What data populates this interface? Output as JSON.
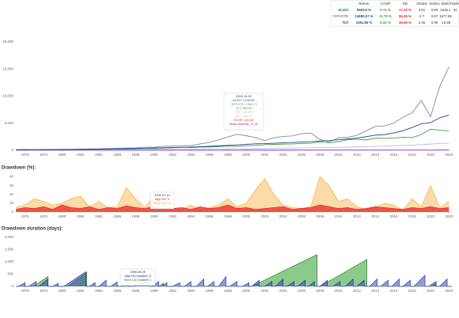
{
  "table": {
    "headers": [
      "Return",
      "CAGR",
      "DD",
      "Sharpe",
      "Sortino",
      "Stdev",
      "Trades"
    ],
    "rows": [
      [
        "ALGO:",
        "8463.8 %",
        "9.74 %",
        "17.33 %",
        "0.51",
        "0.83",
        "3436.1",
        "44"
      ],
      [
        "^SPXSTR:",
        "14880.57 %",
        "11.79 %",
        "55.25 %",
        "0.7",
        "0.87",
        "1677.58"
      ],
      [
        "TLT:",
        "2451.85 %",
        "6.32 %",
        "26.59 %",
        "2.46",
        "0.99",
        "-12.88"
      ]
    ],
    "row_colors": [
      "#1c4f8a",
      "#7d8b99",
      "#333333"
    ],
    "column_colors": [
      "#1c4f8a",
      "#2e9e2e",
      "#e8191b"
    ]
  },
  "chart_data": [
    {
      "type": "line",
      "grid": false,
      "x": [
        1975,
        1976,
        1977,
        1978,
        1979,
        1980,
        1981,
        1982,
        1983,
        1984,
        1985,
        1986,
        1987,
        1988,
        1989,
        1990,
        1991,
        1992,
        1993,
        1994,
        1995,
        1996,
        1997,
        1998,
        1999,
        2000,
        2001,
        2002,
        2003,
        2004,
        2005,
        2006,
        2007,
        2008,
        2009,
        2010,
        2011,
        2012,
        2013,
        2014,
        2015,
        2016,
        2017,
        2018,
        2019,
        2020,
        2021,
        2022
      ],
      "xlim": [
        1975,
        2022.4
      ],
      "xticks": [
        1976,
        1978,
        1980,
        1982,
        1984,
        1986,
        1988,
        1990,
        1992,
        1994,
        1996,
        1998,
        2000,
        2002,
        2004,
        2006,
        2008,
        2010,
        2012,
        2014,
        2016,
        2018,
        2020,
        2022
      ],
      "ylim": [
        0,
        20000
      ],
      "yticks": [
        0,
        {
          "value": 5000,
          "label": "5,000"
        },
        {
          "value": 10000,
          "label": "10,000"
        },
        {
          "value": 15000,
          "label": "15,000"
        },
        {
          "value": 20000,
          "label": "20,000"
        }
      ],
      "series": [
        {
          "color": "#c0b4ee",
          "values": [
            100,
            102,
            104,
            106,
            108,
            112,
            116,
            120,
            125,
            130,
            135,
            140,
            146,
            152,
            158,
            165,
            172,
            180,
            190,
            200,
            210,
            225,
            240,
            255,
            270,
            290,
            310,
            330,
            350,
            370,
            400,
            430,
            460,
            480,
            520,
            560,
            600,
            640,
            680,
            720,
            780,
            840,
            900,
            960,
            1050,
            1150,
            1250,
            1300
          ]
        },
        {
          "color": "#8a2be2",
          "values": [
            20,
            22,
            21,
            23,
            24,
            22,
            25,
            26,
            24,
            27,
            28,
            27,
            29,
            30,
            28,
            31,
            30,
            32,
            31,
            33,
            32,
            34,
            33,
            35,
            34,
            36,
            35,
            37,
            36,
            38,
            37,
            39,
            38,
            40,
            39,
            41,
            40,
            42,
            41,
            43,
            42,
            44,
            43,
            45,
            44,
            46,
            45,
            47
          ]
        },
        {
          "name": "TLT",
          "color": "#3a9a3a",
          "values": [
            100,
            110,
            105,
            110,
            115,
            120,
            125,
            160,
            170,
            190,
            240,
            290,
            280,
            300,
            350,
            370,
            420,
            470,
            550,
            500,
            600,
            610,
            690,
            780,
            720,
            850,
            900,
            1030,
            1080,
            1150,
            1180,
            1250,
            1310,
            1560,
            1400,
            1600,
            1950,
            2050,
            1900,
            2250,
            2200,
            2250,
            2400,
            2350,
            2900,
            3900,
            3700,
            3600
          ]
        },
        {
          "name": "^SPXSTR",
          "color": "#7d8b99",
          "values": [
            100,
            115,
            110,
            120,
            140,
            170,
            160,
            190,
            240,
            250,
            320,
            380,
            400,
            450,
            580,
            560,
            720,
            780,
            860,
            870,
            1180,
            1450,
            1920,
            2450,
            2950,
            2700,
            2350,
            1800,
            2300,
            2550,
            2650,
            3050,
            3200,
            2000,
            1550,
            2300,
            2400,
            2750,
            3600,
            4400,
            4500,
            5000,
            6100,
            6900,
            9200,
            6200,
            11800,
            15400
          ]
        },
        {
          "name": "ALGO",
          "color": "#1c4f8a",
          "values": [
            100,
            110,
            120,
            130,
            140,
            160,
            175,
            195,
            220,
            240,
            270,
            300,
            330,
            350,
            380,
            420,
            470,
            510,
            560,
            600,
            660,
            730,
            820,
            920,
            1000,
            1100,
            1200,
            1230,
            1300,
            1380,
            1450,
            1520,
            1600,
            1720,
            1800,
            1950,
            2100,
            2250,
            2500,
            2800,
            2900,
            3200,
            3600,
            4200,
            4900,
            5100,
            6000,
            6500
          ]
        }
      ],
      "tooltip": {
        "title": "2000-10-30",
        "lines": [
          {
            "text": "ALGO: 1,228.82",
            "color": "#1c4f8a"
          },
          {
            "text": "^SPXSTR: 2,688.73",
            "color": "#7d8b99"
          },
          {
            "text": "TLT: 388.00",
            "color": "#3a9a3a"
          },
          {
            "text": "IEF: 300.85",
            "color": "#c0b4ee"
          },
          {
            "text": "GLD: 164.90",
            "color": "#e6d27a"
          },
          {
            "text": "ECHF: 190.40",
            "color": "#e8191b"
          },
          {
            "text": "Mode (benefit): 37.40",
            "color": "#8a2be2"
          }
        ]
      }
    },
    {
      "type": "area",
      "title": "Drawdown (%):",
      "grid": false,
      "x": [
        1975,
        1976,
        1977,
        1978,
        1979,
        1980,
        1981,
        1982,
        1983,
        1984,
        1985,
        1986,
        1987,
        1988,
        1989,
        1990,
        1991,
        1992,
        1993,
        1994,
        1995,
        1996,
        1997,
        1998,
        1999,
        2000,
        2001,
        2002,
        2003,
        2004,
        2005,
        2006,
        2007,
        2008,
        2009,
        2010,
        2011,
        2012,
        2013,
        2014,
        2015,
        2016,
        2017,
        2018,
        2019,
        2020,
        2021,
        2022
      ],
      "xlim": [
        1975,
        2022.4
      ],
      "xticks": [
        1976,
        1978,
        1980,
        1982,
        1984,
        1986,
        1988,
        1990,
        1992,
        1994,
        1996,
        1998,
        2000,
        2002,
        2004,
        2006,
        2008,
        2010,
        2012,
        2014,
        2016,
        2018,
        2020,
        2022
      ],
      "ylim": [
        0,
        45
      ],
      "yticks": [
        0,
        10,
        20,
        30,
        40
      ],
      "series": [
        {
          "color": "#f5a623",
          "fill": "rgba(245,166,35,0.4)",
          "values": [
            5,
            8,
            15,
            12,
            8,
            10,
            15,
            18,
            6,
            12,
            5,
            6,
            28,
            15,
            5,
            18,
            5,
            4,
            3,
            8,
            2,
            5,
            8,
            15,
            6,
            10,
            25,
            38,
            20,
            8,
            5,
            4,
            6,
            40,
            30,
            12,
            15,
            6,
            3,
            5,
            10,
            8,
            2,
            15,
            6,
            30,
            5,
            12
          ]
        },
        {
          "color": "#e8191b",
          "fill": "rgba(232,25,27,0.7)",
          "values": [
            3,
            5,
            4,
            6,
            3,
            8,
            5,
            4,
            6,
            3,
            5,
            4,
            7,
            5,
            4,
            6,
            3,
            4,
            5,
            3,
            6,
            4,
            5,
            8,
            4,
            5,
            3,
            4,
            5,
            6,
            3,
            4,
            5,
            8,
            6,
            4,
            5,
            3,
            4,
            6,
            5,
            4,
            3,
            5,
            4,
            6,
            4,
            5
          ]
        }
      ],
      "tooltip": {
        "title": "1991-01-14",
        "lines": [
          {
            "text": "Algo DD: 0",
            "color": "#e8191b"
          },
          {
            "text": "Stock DD: 3.3",
            "color": "#f5a623"
          }
        ]
      }
    },
    {
      "type": "area",
      "title": "Drawdown duration (days):",
      "grid": false,
      "xlim": [
        1975,
        2022.4
      ],
      "xticks": [
        1976,
        1978,
        1980,
        1982,
        1984,
        1986,
        1988,
        1990,
        1992,
        1994,
        1996,
        1998,
        2000,
        2002,
        2004,
        2006,
        2008,
        2010,
        2012,
        2014,
        2016,
        2018,
        2020,
        2022
      ],
      "ylim": [
        0,
        2000
      ],
      "yticks": [
        0,
        500,
        {
          "value": 1000,
          "label": "1,000"
        },
        {
          "value": 1500,
          "label": "1,500"
        },
        {
          "value": 2000,
          "label": "2,000"
        }
      ],
      "series": [
        {
          "color": "#1f7a1f",
          "fill": "rgba(46,158,46,0.55)",
          "x": [
            1975,
            1976.9,
            1978.5,
            1978.5,
            1980.6,
            1982.7,
            1982.7,
            1987.7,
            1989.5,
            1989.5,
            1990.5,
            1991.0,
            1991.0,
            2000.6,
            2007.7,
            2007.7,
            2008.0,
            2013.1,
            2013.1,
            2020.1,
            2020.6,
            2020.6,
            2022.3
          ],
          "values": [
            0,
            0,
            400,
            0,
            0,
            560,
            0,
            0,
            420,
            0,
            0,
            130,
            0,
            0,
            1300,
            0,
            0,
            1100,
            0,
            0,
            120,
            0,
            0
          ]
        },
        {
          "color": "#1515c0",
          "fill": "rgba(40,60,170,0.5)",
          "x": [
            1975,
            1975.3,
            1976.0,
            1976.0,
            1976.4,
            1977.2,
            1977.2,
            1977.5,
            1978.5,
            1978.5,
            1979.0,
            1979.6,
            1979.6,
            1980.2,
            1982.6,
            1982.6,
            1983.0,
            1983.6,
            1983.6,
            1984.0,
            1984.8,
            1984.8,
            1985.3,
            1986.0,
            1986.0,
            1986.5,
            1987.2,
            1987.2,
            1987.8,
            1989.5,
            1989.5,
            1989.8,
            1990.5,
            1990.5,
            1990.8,
            1991.4,
            1991.4,
            1992.0,
            1992.8,
            1992.8,
            1993.3,
            1994.0,
            1994.0,
            1994.6,
            1995.4,
            1995.4,
            1995.8,
            1996.5,
            1996.5,
            1997.0,
            1997.8,
            1997.8,
            1998.2,
            1999.0,
            1999.0,
            1999.6,
            2000.3,
            2000.3,
            2000.6,
            2001.4,
            2001.4,
            2002.0,
            2002.8,
            2002.8,
            2003.2,
            2004.0,
            2004.0,
            2004.4,
            2005.2,
            2005.2,
            2005.6,
            2006.4,
            2006.4,
            2006.8,
            2007.4,
            2007.4,
            2008.0,
            2008.8,
            2008.8,
            2009.4,
            2010.2,
            2010.2,
            2010.8,
            2011.6,
            2011.6,
            2012.0,
            2012.8,
            2012.8,
            2013.4,
            2014.2,
            2014.2,
            2014.6,
            2015.4,
            2015.4,
            2015.8,
            2016.6,
            2016.6,
            2017.0,
            2017.8,
            2017.8,
            2018.2,
            2019.4,
            2019.4,
            2019.8,
            2020.6,
            2020.6,
            2021.0,
            2021.8,
            2021.8,
            2022.3
          ],
          "values": [
            0,
            0,
            150,
            0,
            0,
            200,
            0,
            0,
            300,
            0,
            0,
            120,
            0,
            0,
            600,
            0,
            0,
            150,
            0,
            0,
            250,
            0,
            0,
            180,
            0,
            0,
            200,
            0,
            0,
            450,
            0,
            0,
            200,
            0,
            0,
            150,
            0,
            0,
            150,
            0,
            0,
            200,
            0,
            0,
            300,
            0,
            0,
            200,
            0,
            0,
            400,
            0,
            0,
            200,
            0,
            0,
            150,
            0,
            0,
            250,
            0,
            0,
            200,
            0,
            0,
            300,
            0,
            0,
            200,
            0,
            0,
            250,
            0,
            0,
            200,
            0,
            0,
            250,
            0,
            0,
            200,
            0,
            0,
            300,
            0,
            0,
            250,
            0,
            0,
            300,
            0,
            0,
            250,
            0,
            0,
            300,
            0,
            0,
            250,
            0,
            0,
            450,
            0,
            0,
            200,
            0,
            0,
            300,
            0,
            0
          ]
        }
      ],
      "tooltip": {
        "title": "1988-08-05",
        "lines": [
          {
            "text": "Algo DD duration: 3",
            "color": "#1515c0"
          },
          {
            "text": "Stock DD duration: 1",
            "color": "#1f7a1f"
          }
        ]
      }
    }
  ]
}
